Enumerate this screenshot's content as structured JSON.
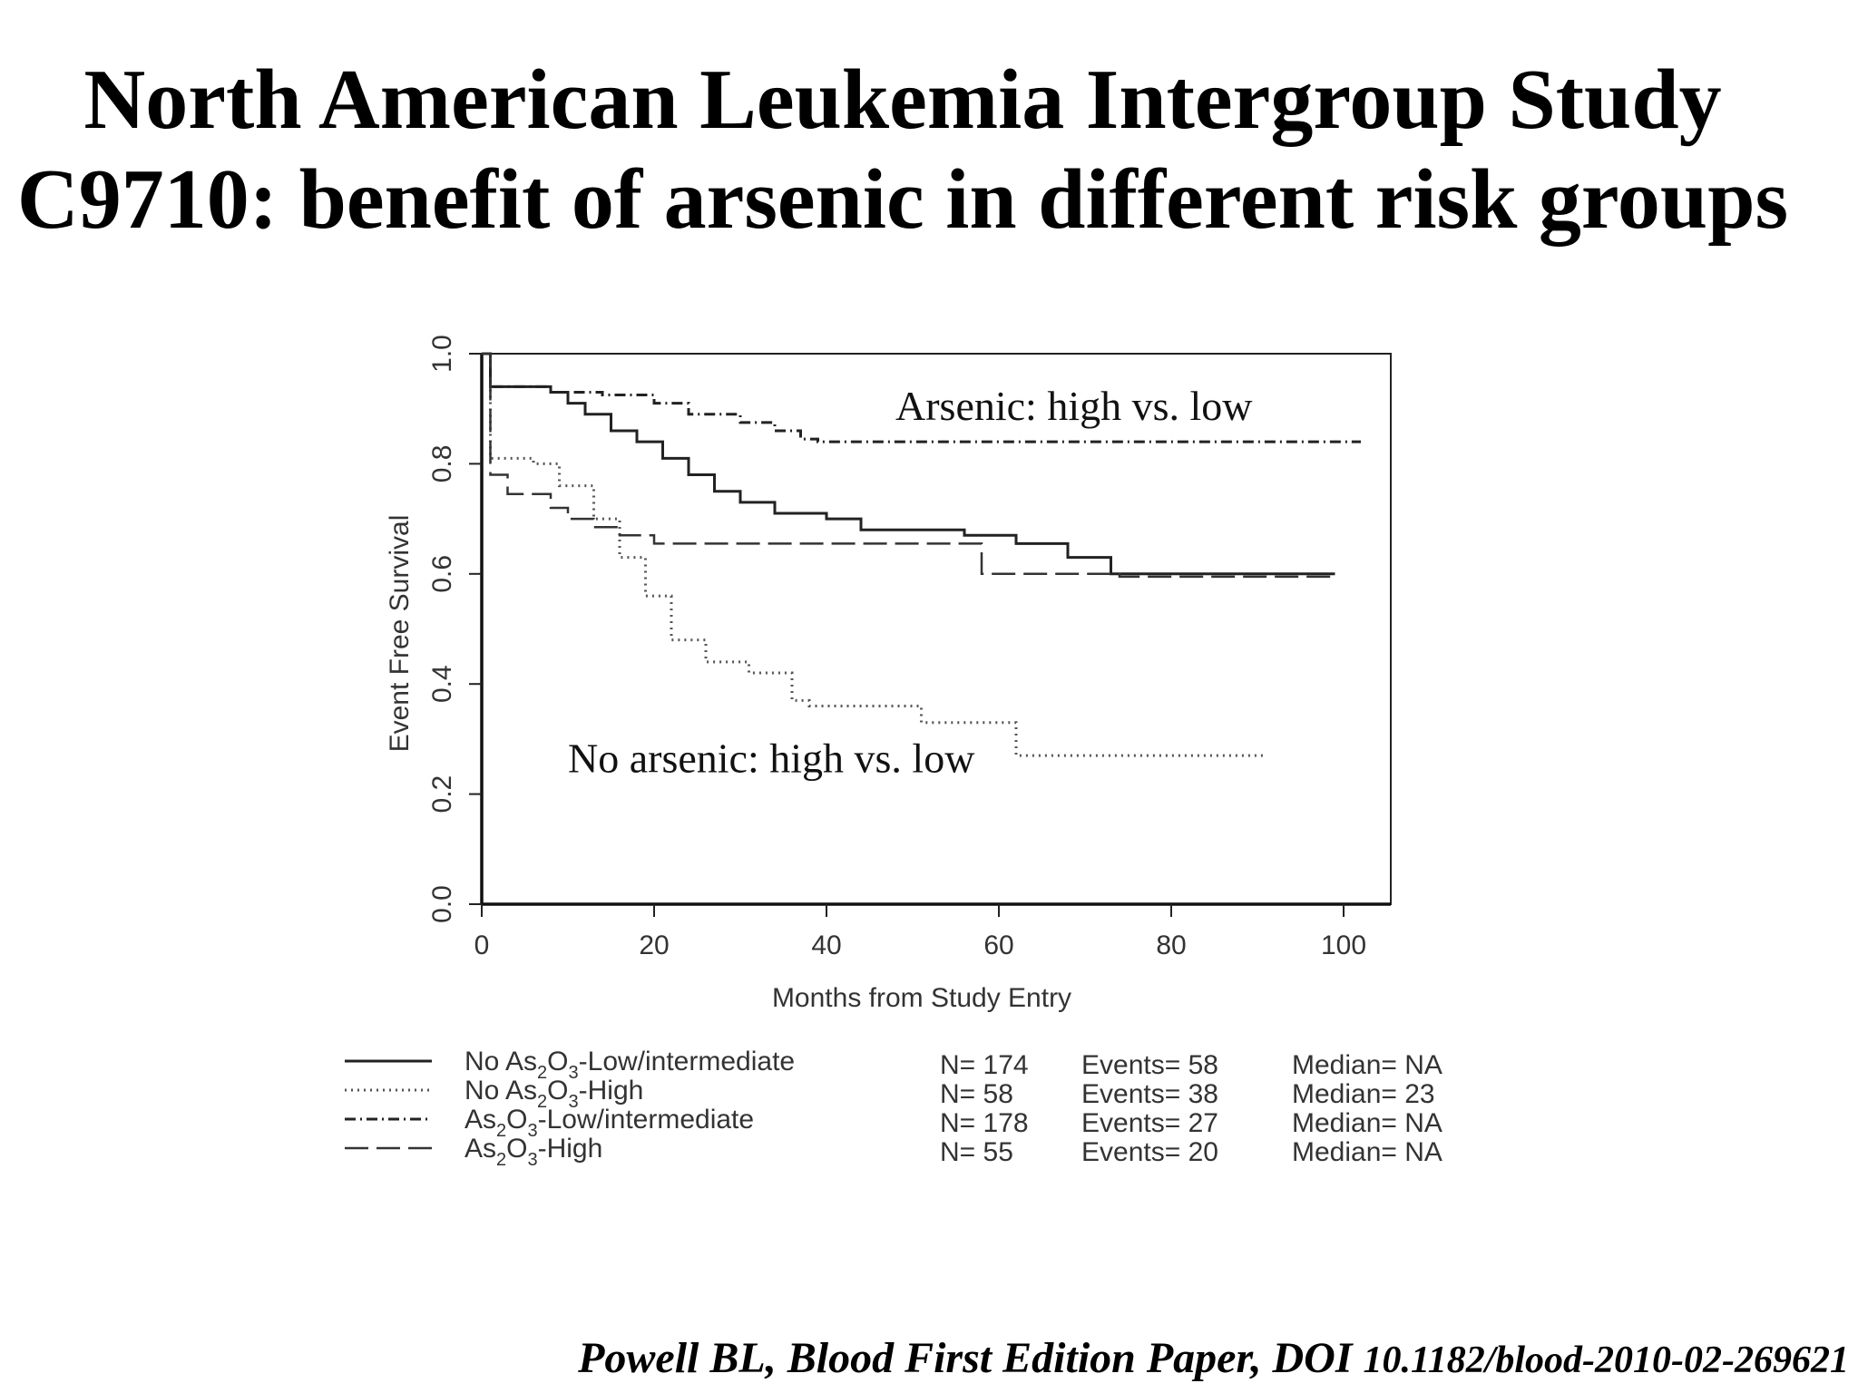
{
  "slide": {
    "title_line1": "North American Leukemia Intergroup Study",
    "title_line2": "C9710: benefit of arsenic in different risk groups",
    "citation_main": "Powell BL, Blood First Edition Paper, DOI ",
    "citation_doi": "10.1182/blood-2010-02-269621"
  },
  "chart_data": {
    "type": "line",
    "title": "",
    "xlabel": "Months from Study Entry",
    "ylabel": "Event Free Survival",
    "xlim": [
      0,
      105
    ],
    "ylim": [
      0,
      1.0
    ],
    "x_ticks": [
      0,
      20,
      40,
      60,
      80,
      100
    ],
    "y_ticks": [
      0.0,
      0.2,
      0.4,
      0.6,
      0.8,
      1.0
    ],
    "grid": false,
    "legend_position": "bottom",
    "annotations": [
      {
        "text": "Arsenic: high vs. low",
        "x": 48,
        "y": 0.88
      },
      {
        "text": "No arsenic: high vs. low",
        "x": 10,
        "y": 0.24
      }
    ],
    "series": [
      {
        "name": "No As2O3-Low/intermediate",
        "name_parts": [
          "No As",
          "2",
          "O",
          "3",
          "-Low/intermediate"
        ],
        "n": "N= 174",
        "events": "Events= 58",
        "median": "Median= NA",
        "style": "solid",
        "color": "#222222",
        "x": [
          0,
          1,
          8,
          10,
          12,
          15,
          18,
          21,
          24,
          27,
          30,
          34,
          40,
          44,
          56,
          62,
          68,
          73,
          99
        ],
        "y": [
          1.0,
          0.94,
          0.93,
          0.91,
          0.89,
          0.86,
          0.84,
          0.81,
          0.78,
          0.75,
          0.73,
          0.71,
          0.7,
          0.68,
          0.67,
          0.655,
          0.63,
          0.6,
          0.6
        ]
      },
      {
        "name": "No As2O3-High",
        "name_parts": [
          "No As",
          "2",
          "O",
          "3",
          "-High"
        ],
        "n": "N= 58",
        "events": "Events= 38",
        "median": "Median= 23",
        "style": "dotted",
        "color": "#555555",
        "x": [
          0,
          1,
          6,
          9,
          13,
          16,
          19,
          22,
          26,
          31,
          36,
          38,
          51,
          62,
          91
        ],
        "y": [
          1.0,
          0.81,
          0.8,
          0.76,
          0.7,
          0.63,
          0.56,
          0.48,
          0.44,
          0.42,
          0.37,
          0.36,
          0.33,
          0.27,
          0.27
        ]
      },
      {
        "name": "As2O3-Low/intermediate",
        "name_parts": [
          "As",
          "2",
          "O",
          "3",
          "-Low/intermediate"
        ],
        "n": "N= 178",
        "events": "Events= 27",
        "median": "Median= NA",
        "style": "dashdot",
        "color": "#222222",
        "x": [
          0,
          1,
          8,
          14,
          20,
          24,
          30,
          34,
          37,
          39,
          102
        ],
        "y": [
          1.0,
          0.94,
          0.93,
          0.925,
          0.91,
          0.89,
          0.875,
          0.86,
          0.845,
          0.84,
          0.84
        ]
      },
      {
        "name": "As2O3-High",
        "name_parts": [
          "As",
          "2",
          "O",
          "3",
          "-High"
        ],
        "n": "N= 55",
        "events": "Events= 20",
        "median": "Median= NA",
        "style": "dashed",
        "color": "#333333",
        "x": [
          0,
          1,
          3,
          8,
          10,
          13,
          16,
          20,
          58,
          74,
          99
        ],
        "y": [
          1.0,
          0.78,
          0.745,
          0.72,
          0.7,
          0.685,
          0.67,
          0.655,
          0.6,
          0.595,
          0.595
        ]
      }
    ]
  }
}
